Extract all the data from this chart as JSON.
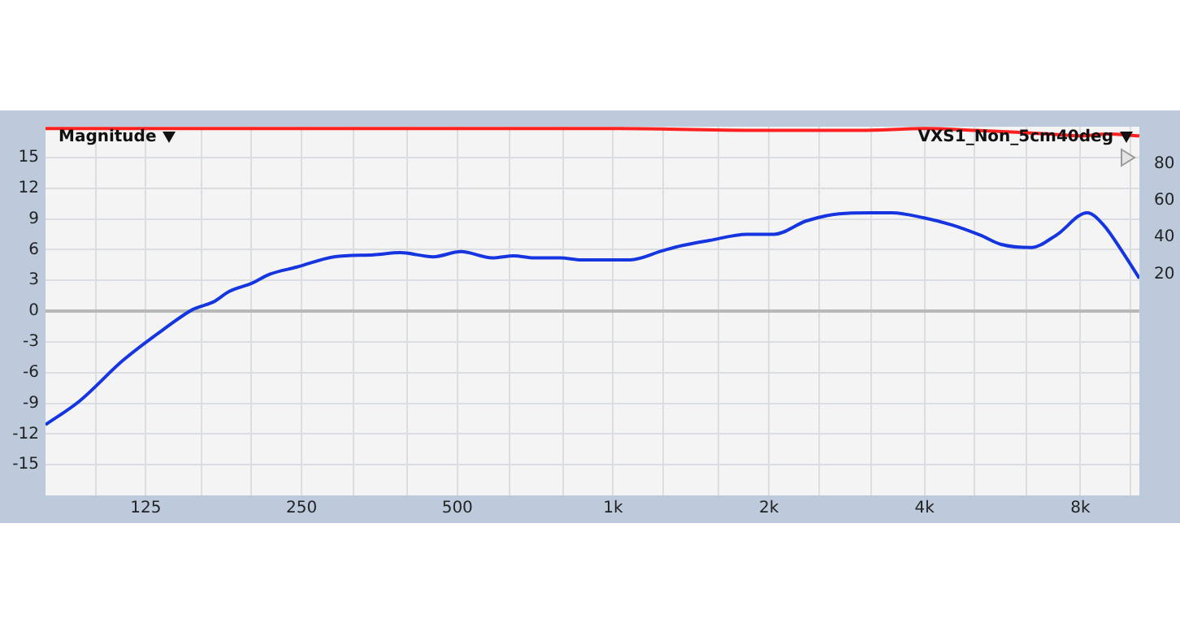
{
  "chart_data": {
    "type": "line",
    "ylabel": "Magnitude",
    "annotations": [
      "VXS1_Non_5cm40deg"
    ],
    "log": "x",
    "xlim": [
      80,
      10400
    ],
    "ylim": [
      -18,
      18
    ],
    "y2lim": [
      -100,
      100
    ],
    "xticks": [
      {
        "value": 100,
        "label": null
      },
      {
        "value": 125,
        "label": "125"
      },
      {
        "value": 160,
        "label": null
      },
      {
        "value": 200,
        "label": null
      },
      {
        "value": 250,
        "label": "250"
      },
      {
        "value": 315,
        "label": null
      },
      {
        "value": 400,
        "label": null
      },
      {
        "value": 500,
        "label": "500"
      },
      {
        "value": 630,
        "label": null
      },
      {
        "value": 800,
        "label": null
      },
      {
        "value": 1000,
        "label": "1k"
      },
      {
        "value": 1250,
        "label": null
      },
      {
        "value": 1600,
        "label": null
      },
      {
        "value": 2000,
        "label": "2k"
      },
      {
        "value": 2500,
        "label": null
      },
      {
        "value": 3150,
        "label": null
      },
      {
        "value": 4000,
        "label": "4k"
      },
      {
        "value": 5000,
        "label": null
      },
      {
        "value": 6300,
        "label": null
      },
      {
        "value": 8000,
        "label": "8k"
      },
      {
        "value": 10000,
        "label": null
      }
    ],
    "yticks": [
      -15,
      -12,
      -9,
      -6,
      -3,
      0,
      3,
      6,
      9,
      12,
      15
    ],
    "y2ticks": [
      20,
      40,
      60,
      80
    ],
    "grid": true,
    "legend": false,
    "marker": "none",
    "line_style": "solid",
    "series": [
      {
        "color": "#1535e0",
        "x": [
          80,
          93,
          113,
          136,
          154,
          169,
          181,
          200,
          217,
          245,
          289,
          345,
          388,
          449,
          508,
          584,
          643,
          703,
          790,
          869,
          1079,
          1247,
          1361,
          1536,
          1813,
          2048,
          2363,
          2736,
          3150,
          3460,
          3990,
          4525,
          5130,
          5630,
          6420,
          7180,
          8250,
          8870,
          9640,
          10400
        ],
        "values": [
          -11.1,
          -8.8,
          -4.8,
          -1.7,
          0.15,
          0.9,
          1.9,
          2.7,
          3.6,
          4.3,
          5.3,
          5.5,
          5.7,
          5.3,
          5.8,
          5.2,
          5.4,
          5.2,
          5.2,
          5.0,
          5.0,
          5.9,
          6.4,
          6.9,
          7.5,
          7.5,
          8.8,
          9.5,
          9.6,
          9.6,
          9.1,
          8.4,
          7.4,
          6.5,
          6.2,
          7.4,
          9.6,
          8.4,
          5.8,
          3.2
        ]
      },
      {
        "color": "#ff2020",
        "axis": "y2",
        "x": [
          80,
          500,
          1000,
          2000,
          3000,
          4000,
          5000,
          6000,
          7000,
          8000,
          9000,
          10400
        ],
        "values": [
          99,
          99,
          99,
          98,
          98,
          99,
          98,
          97,
          96,
          95,
          96,
          95
        ]
      }
    ]
  }
}
